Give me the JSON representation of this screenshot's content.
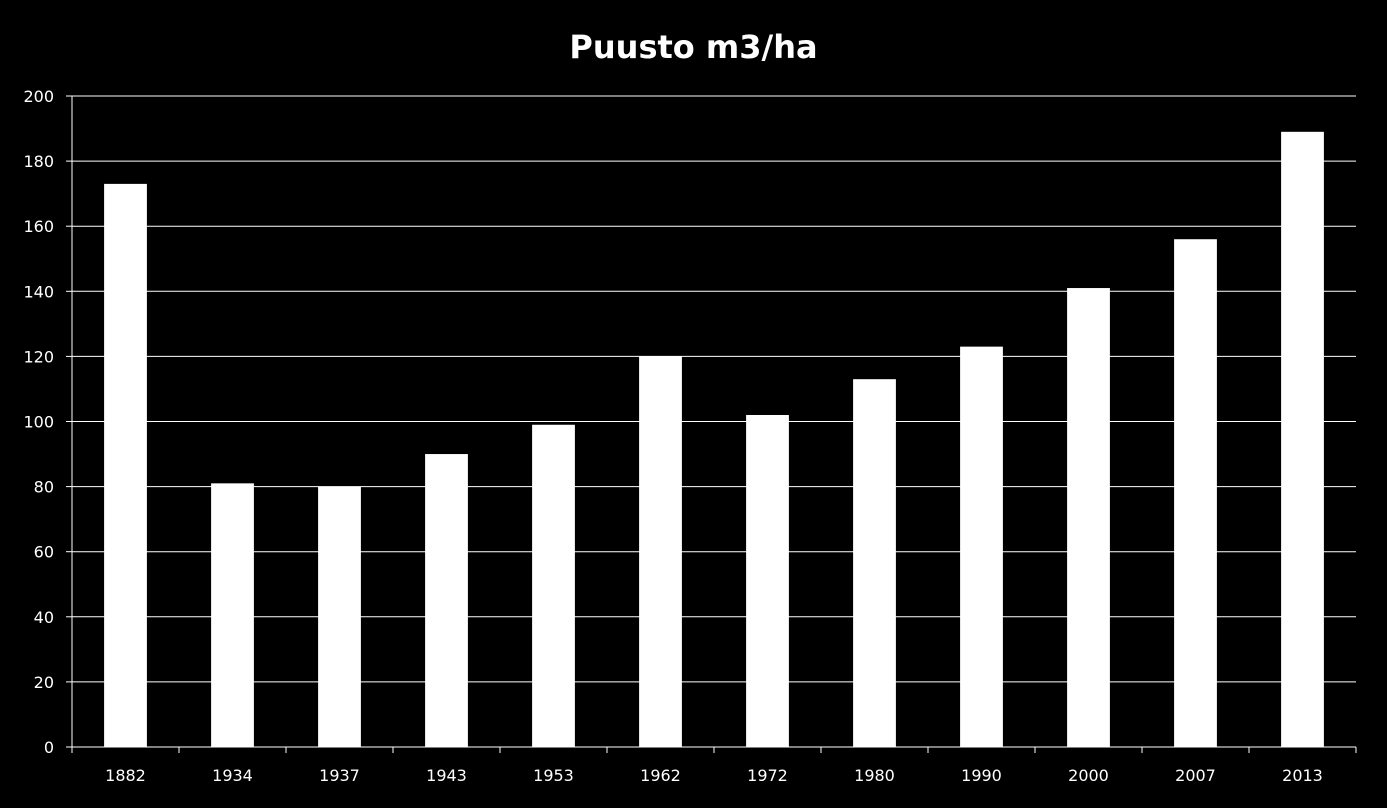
{
  "chart_data": {
    "type": "bar",
    "title": "Puusto m3/ha",
    "xlabel": "",
    "ylabel": "",
    "categories": [
      "1882",
      "1934",
      "1937",
      "1943",
      "1953",
      "1962",
      "1972",
      "1980",
      "1990",
      "2000",
      "2007",
      "2013"
    ],
    "values": [
      173,
      81,
      80,
      90,
      99,
      120,
      102,
      113,
      123,
      141,
      156,
      189
    ],
    "ylim": [
      0,
      200
    ],
    "yticks": [
      0,
      20,
      40,
      60,
      80,
      100,
      120,
      140,
      160,
      180,
      200
    ],
    "grid": true,
    "legend": "none",
    "colors": {
      "background": "#000000",
      "bar": "#ffffff",
      "grid": "#ffffff",
      "text": "#ffffff"
    }
  }
}
